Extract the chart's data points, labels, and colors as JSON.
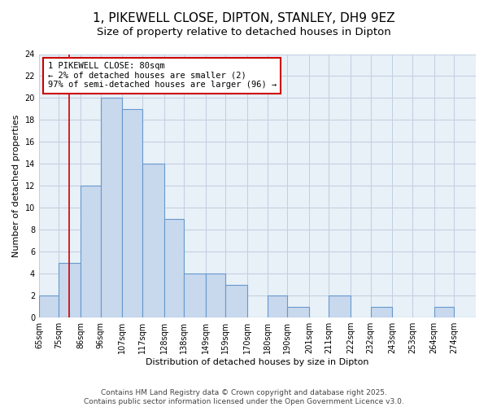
{
  "title": "1, PIKEWELL CLOSE, DIPTON, STANLEY, DH9 9EZ",
  "subtitle": "Size of property relative to detached houses in Dipton",
  "xlabel": "Distribution of detached houses by size in Dipton",
  "ylabel": "Number of detached properties",
  "bins": [
    "65sqm",
    "75sqm",
    "86sqm",
    "96sqm",
    "107sqm",
    "117sqm",
    "128sqm",
    "138sqm",
    "149sqm",
    "159sqm",
    "170sqm",
    "180sqm",
    "190sqm",
    "201sqm",
    "211sqm",
    "222sqm",
    "232sqm",
    "243sqm",
    "253sqm",
    "264sqm",
    "274sqm"
  ],
  "bin_edges": [
    65,
    75,
    86,
    96,
    107,
    117,
    128,
    138,
    149,
    159,
    170,
    180,
    190,
    201,
    211,
    222,
    232,
    243,
    253,
    264,
    274,
    285
  ],
  "counts": [
    2,
    5,
    12,
    20,
    19,
    14,
    9,
    4,
    4,
    3,
    0,
    2,
    1,
    0,
    2,
    0,
    1,
    0,
    0,
    1,
    0
  ],
  "bar_color": "#c8d8ed",
  "bar_edge_color": "#6699cc",
  "plot_bg_color": "#e8f0f8",
  "grid_color": "#c0cedf",
  "vline_x": 80,
  "vline_color": "#cc0000",
  "annotation_title": "1 PIKEWELL CLOSE: 80sqm",
  "annotation_line1": "← 2% of detached houses are smaller (2)",
  "annotation_line2": "97% of semi-detached houses are larger (96) →",
  "annotation_box_color": "#ffffff",
  "annotation_box_edge": "#cc0000",
  "ylim": [
    0,
    24
  ],
  "yticks": [
    0,
    2,
    4,
    6,
    8,
    10,
    12,
    14,
    16,
    18,
    20,
    22,
    24
  ],
  "footer1": "Contains HM Land Registry data © Crown copyright and database right 2025.",
  "footer2": "Contains public sector information licensed under the Open Government Licence v3.0.",
  "title_fontsize": 11,
  "subtitle_fontsize": 9.5,
  "axis_label_fontsize": 8,
  "tick_fontsize": 7,
  "annotation_fontsize": 7.5,
  "footer_fontsize": 6.5
}
